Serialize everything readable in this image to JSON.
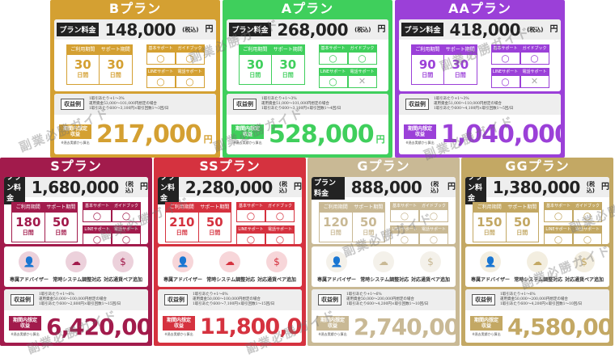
{
  "common": {
    "price_label": "プラン料金",
    "tax_label": "(税込)",
    "yen": "円",
    "period_headers": [
      "ご利用期間",
      "サポート期間"
    ],
    "period_unit": "日間",
    "service_labels": [
      "基本サポート",
      "ガイドブック",
      "LINEサポート",
      "電話サポート"
    ],
    "example_label": "収益例",
    "badge_label": "期間内想定収益",
    "footnote": "※過去実績から算出",
    "features": [
      {
        "label": "専属アドバイザー",
        "icon": "advisor-icon"
      },
      {
        "label": "常時システム調整対応",
        "icon": "cloud-system-icon"
      },
      {
        "label": "対応通貨ペア追加",
        "icon": "dollar-coin-icon"
      }
    ],
    "watermark": "副業必勝ガイド"
  },
  "plans": [
    {
      "name": "Bプラン",
      "price": "148,000",
      "usage_days": "30",
      "support_days": "30",
      "services": [
        "○",
        "○",
        "○",
        "○"
      ],
      "notes": [
        "1取引あたり+1～3%",
        "運用資金53,000～101,000円想定の場合",
        "1取引あたり600～3,100円×取引回数1～3回/日"
      ],
      "revenue": "217,000",
      "color": "#d4a032",
      "value_color": "#d4a032",
      "features": false
    },
    {
      "name": "Aプラン",
      "price": "268,000",
      "usage_days": "30",
      "support_days": "30",
      "services": [
        "○",
        "○",
        "○",
        "✕"
      ],
      "notes": [
        "1取引あたり+1～3%",
        "運用資金51,000～101,000円想定の場合",
        "1取引あたり600～3,100円×取引回数1～4回/日"
      ],
      "revenue": "528,000",
      "color": "#3fcf5c",
      "value_color": "#3fcf5c",
      "features": false
    },
    {
      "name": "AAプラン",
      "price": "418,000",
      "usage_days": "90",
      "support_days": "30",
      "services": [
        "○",
        "○",
        "○",
        "✕"
      ],
      "notes": [
        "1取引あたり+1～3%",
        "運用資金51,000～110,000円想定の場合",
        "1取引あたり600～4,100円×取引回数1～5回/日"
      ],
      "revenue": "1,040,000",
      "color": "#9b40d8",
      "value_color": "#9b40d8",
      "features": false
    },
    {
      "name": "Sプラン",
      "price": "1,680,000",
      "usage_days": "180",
      "support_days": "50",
      "services": [
        "○",
        "○",
        "○",
        "○"
      ],
      "notes": [
        "1取引あたり+1～6%",
        "運用資金50,000～100,000円想定の場合",
        "1取引あたり600～2,800円×取引回数1～15回/日"
      ],
      "revenue": "6,420,000",
      "color": "#a21b4c",
      "value_color": "#a21b4c",
      "features": true
    },
    {
      "name": "SSプラン",
      "price": "2,280,000",
      "usage_days": "210",
      "support_days": "50",
      "services": [
        "○",
        "○",
        "○",
        "○"
      ],
      "notes": [
        "1取引あたり+1～6%",
        "運用資金50,000～100,000円想定の場合",
        "1取引あたり600～7,100円×取引回数1～15回/日"
      ],
      "revenue": "11,800,000",
      "color": "#d5323f",
      "value_color": "#d5323f",
      "features": true
    },
    {
      "name": "Gプラン",
      "price": "888,000",
      "usage_days": "120",
      "support_days": "50",
      "services": [
        "○",
        "○",
        "○",
        "○"
      ],
      "notes": [
        "1取引あたり+1～6%",
        "運用資金50,000～200,000円想定の場合",
        "1取引あたり600～4,200円×取引回数1～10回/日"
      ],
      "revenue": "2,740,000",
      "color": "#c9b995",
      "value_color": "#c9b995",
      "features": true
    },
    {
      "name": "GGプラン",
      "price": "1,380,000",
      "usage_days": "150",
      "support_days": "50",
      "services": [
        "○",
        "○",
        "○",
        "○"
      ],
      "notes": [
        "1取引あたり+1～6%",
        "運用資金50,000～200,000円想定の場合",
        "1取引あたり600～4,200円×取引回数1～10回/日"
      ],
      "revenue": "4,580,000",
      "color": "#c3a864",
      "value_color": "#c3a864",
      "features": true
    }
  ]
}
